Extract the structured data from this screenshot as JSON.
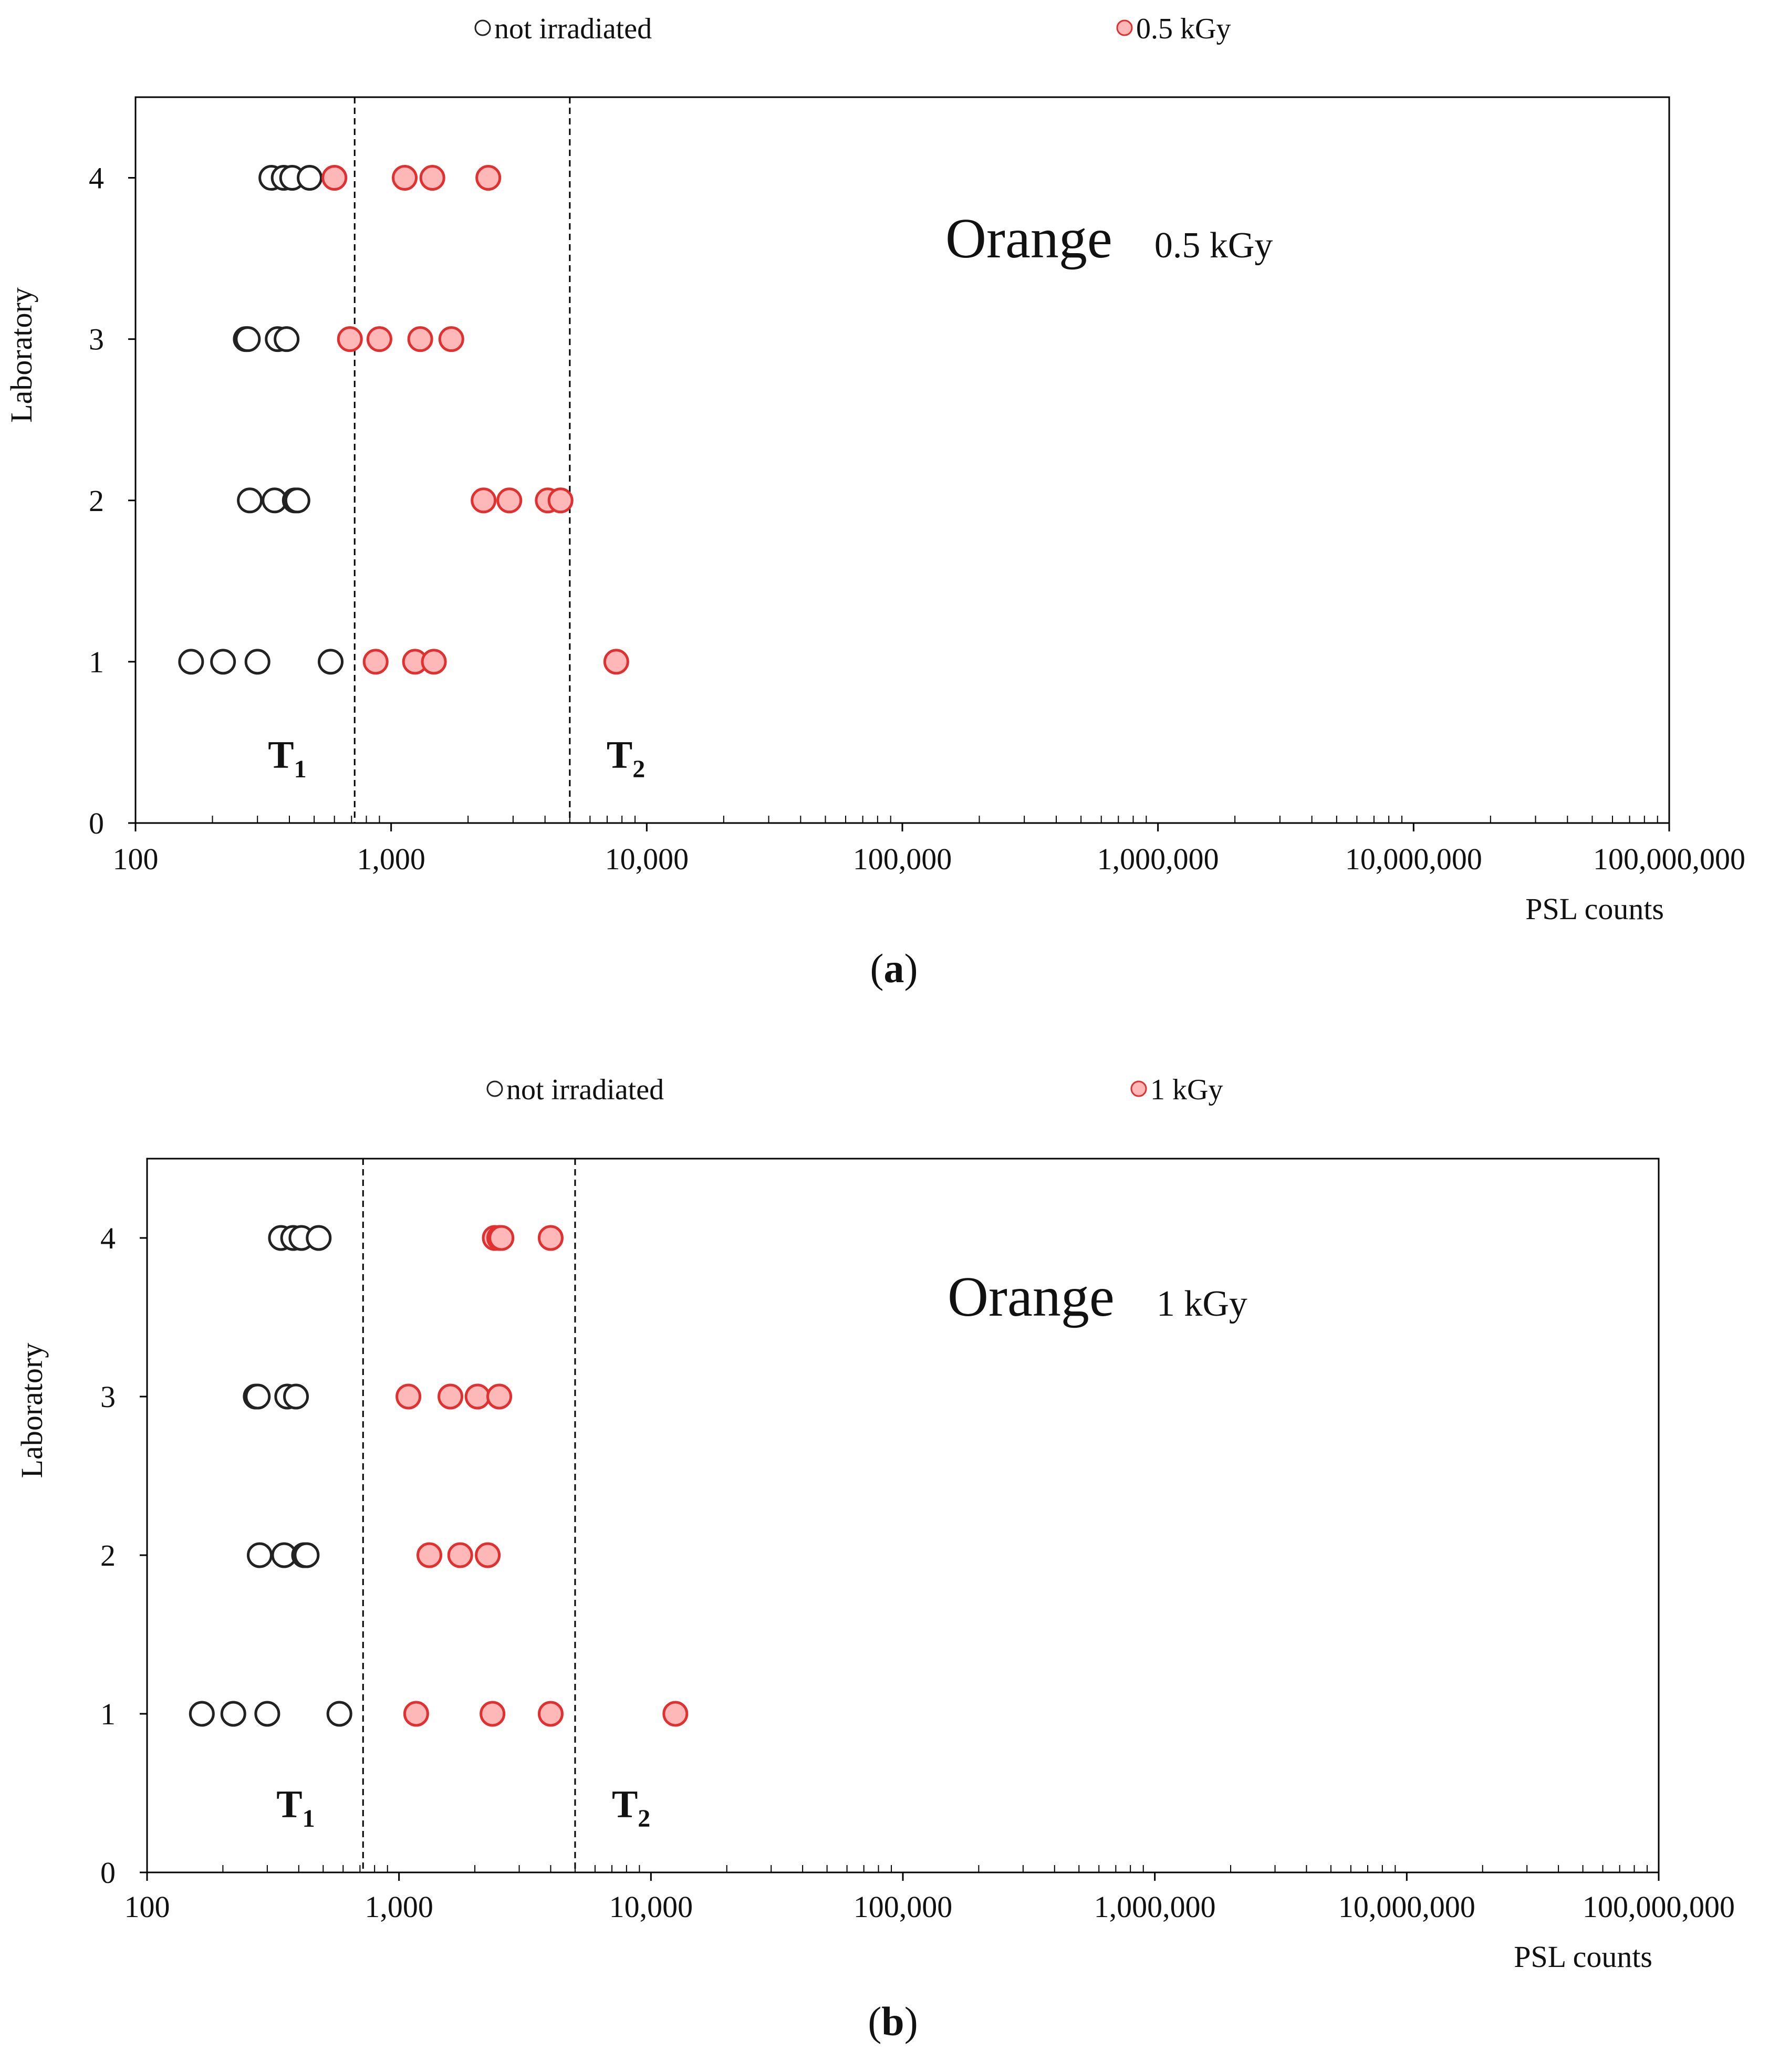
{
  "chart_data": [
    {
      "panel": "a",
      "type": "scatter",
      "caption_open": "(",
      "caption_letter": "a",
      "caption_close": ")",
      "ylabel": "Laboratory",
      "xlabel": "PSL counts",
      "x_scale": "log",
      "xlim": [
        100,
        100000000
      ],
      "ylim": [
        0,
        4.5
      ],
      "x_ticks": [
        100,
        1000,
        10000,
        100000,
        1000000,
        10000000,
        100000000
      ],
      "x_tick_labels": [
        "100",
        "1,000",
        "10,000",
        "100,000",
        "1,000,000",
        "10,000,000",
        "100,000,000"
      ],
      "y_ticks": [
        0,
        1,
        2,
        3,
        4
      ],
      "y_tick_labels": [
        "0",
        "1",
        "2",
        "3",
        "4"
      ],
      "grid": false,
      "legend_position": "top",
      "annotation": {
        "main": "Orange",
        "sub": "0.5 kGy"
      },
      "thresholds": [
        {
          "label": "T",
          "sub": "1",
          "x": 720
        },
        {
          "label": "T",
          "sub": "2",
          "x": 5000
        }
      ],
      "series": [
        {
          "name": "not irradiated",
          "stroke": "#222222",
          "fill": "#ffffff",
          "points": [
            {
              "x": 340,
              "y": 4
            },
            {
              "x": 380,
              "y": 4
            },
            {
              "x": 410,
              "y": 4
            },
            {
              "x": 480,
              "y": 4
            },
            {
              "x": 270,
              "y": 3
            },
            {
              "x": 275,
              "y": 3
            },
            {
              "x": 360,
              "y": 3
            },
            {
              "x": 390,
              "y": 3
            },
            {
              "x": 280,
              "y": 2
            },
            {
              "x": 350,
              "y": 2
            },
            {
              "x": 420,
              "y": 2
            },
            {
              "x": 430,
              "y": 2
            },
            {
              "x": 165,
              "y": 1
            },
            {
              "x": 220,
              "y": 1
            },
            {
              "x": 300,
              "y": 1
            },
            {
              "x": 580,
              "y": 1
            }
          ]
        },
        {
          "name": "0.5 kGy",
          "stroke": "#e03030",
          "fill": "#ffb8b8",
          "points": [
            {
              "x": 600,
              "y": 4
            },
            {
              "x": 1130,
              "y": 4
            },
            {
              "x": 1450,
              "y": 4
            },
            {
              "x": 2400,
              "y": 4
            },
            {
              "x": 690,
              "y": 3
            },
            {
              "x": 900,
              "y": 3
            },
            {
              "x": 1300,
              "y": 3
            },
            {
              "x": 1720,
              "y": 3
            },
            {
              "x": 2300,
              "y": 2
            },
            {
              "x": 2900,
              "y": 2
            },
            {
              "x": 4100,
              "y": 2
            },
            {
              "x": 4600,
              "y": 2
            },
            {
              "x": 870,
              "y": 1
            },
            {
              "x": 1240,
              "y": 1
            },
            {
              "x": 1470,
              "y": 1
            },
            {
              "x": 7600,
              "y": 1
            }
          ]
        }
      ]
    },
    {
      "panel": "b",
      "type": "scatter",
      "caption_open": "(",
      "caption_letter": "b",
      "caption_close": ")",
      "ylabel": "Laboratory",
      "xlabel": "PSL counts",
      "x_scale": "log",
      "xlim": [
        100,
        100000000
      ],
      "ylim": [
        0,
        4.5
      ],
      "x_ticks": [
        100,
        1000,
        10000,
        100000,
        1000000,
        10000000,
        100000000
      ],
      "x_tick_labels": [
        "100",
        "1,000",
        "10,000",
        "100,000",
        "1,000,000",
        "10,000,000",
        "100,000,000"
      ],
      "y_ticks": [
        0,
        1,
        2,
        3,
        4
      ],
      "y_tick_labels": [
        "0",
        "1",
        "2",
        "3",
        "4"
      ],
      "grid": false,
      "legend_position": "top",
      "annotation": {
        "main": "Orange",
        "sub": "1 kGy"
      },
      "thresholds": [
        {
          "label": "T",
          "sub": "1",
          "x": 720
        },
        {
          "label": "T",
          "sub": "2",
          "x": 5000
        }
      ],
      "series": [
        {
          "name": "not irradiated",
          "stroke": "#222222",
          "fill": "#ffffff",
          "points": [
            {
              "x": 340,
              "y": 4
            },
            {
              "x": 380,
              "y": 4
            },
            {
              "x": 410,
              "y": 4
            },
            {
              "x": 480,
              "y": 4
            },
            {
              "x": 270,
              "y": 3
            },
            {
              "x": 275,
              "y": 3
            },
            {
              "x": 360,
              "y": 3
            },
            {
              "x": 390,
              "y": 3
            },
            {
              "x": 280,
              "y": 2
            },
            {
              "x": 350,
              "y": 2
            },
            {
              "x": 420,
              "y": 2
            },
            {
              "x": 430,
              "y": 2
            },
            {
              "x": 165,
              "y": 1
            },
            {
              "x": 220,
              "y": 1
            },
            {
              "x": 300,
              "y": 1
            },
            {
              "x": 580,
              "y": 1
            }
          ]
        },
        {
          "name": "1 kGy",
          "stroke": "#e03030",
          "fill": "#ffb8b8",
          "points": [
            {
              "x": 2400,
              "y": 4
            },
            {
              "x": 2500,
              "y": 4
            },
            {
              "x": 2550,
              "y": 4
            },
            {
              "x": 4000,
              "y": 4
            },
            {
              "x": 1090,
              "y": 3
            },
            {
              "x": 1600,
              "y": 3
            },
            {
              "x": 2050,
              "y": 3
            },
            {
              "x": 2500,
              "y": 3
            },
            {
              "x": 1320,
              "y": 2
            },
            {
              "x": 1750,
              "y": 2
            },
            {
              "x": 2250,
              "y": 2
            },
            {
              "x": 1170,
              "y": 1
            },
            {
              "x": 2350,
              "y": 1
            },
            {
              "x": 4000,
              "y": 1
            },
            {
              "x": 12500,
              "y": 1
            }
          ]
        }
      ]
    }
  ]
}
